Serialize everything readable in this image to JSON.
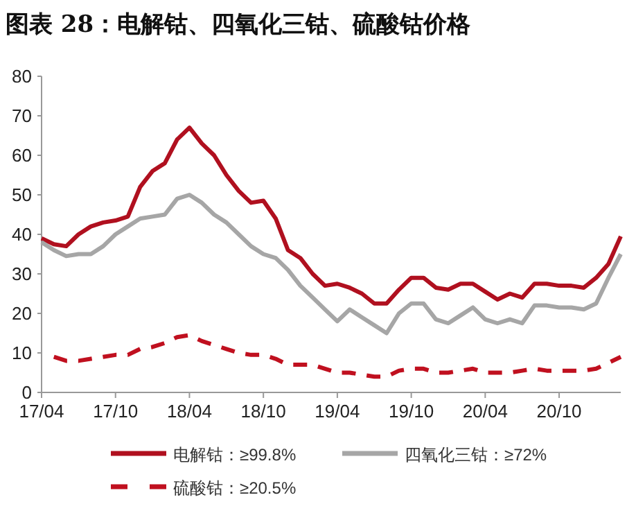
{
  "chart_data": {
    "type": "line",
    "title": "图表 28：电解钴、四氧化三钴、硫酸钴价格",
    "categories": [
      "17/04",
      null,
      null,
      null,
      null,
      null,
      "17/10",
      null,
      null,
      null,
      null,
      null,
      "18/04",
      null,
      null,
      null,
      null,
      null,
      "18/10",
      null,
      null,
      null,
      null,
      null,
      "19/04",
      null,
      null,
      null,
      null,
      null,
      "19/10",
      null,
      null,
      null,
      null,
      null,
      "20/04",
      null,
      null,
      null,
      null,
      null,
      "20/10",
      null,
      null,
      null,
      null,
      null
    ],
    "series": [
      {
        "name": "电解钴：≥99.8%",
        "color": "#b0101f",
        "line_style": "solid",
        "values": [
          39,
          37.5,
          37,
          40,
          42,
          43,
          43.5,
          44.5,
          52,
          56,
          58,
          64,
          67,
          63,
          60,
          55,
          51,
          48,
          48.5,
          44,
          36,
          34,
          30,
          27,
          27.5,
          26.5,
          25,
          22.5,
          22.5,
          26,
          29,
          29,
          26.5,
          26,
          27.5,
          27.5,
          25.5,
          23.5,
          25,
          24,
          27.5,
          27.5,
          27,
          27,
          26.5,
          29,
          32.5,
          39.5
        ]
      },
      {
        "name": "四氧化三钴：≥72%",
        "color": "#a6a6a6",
        "line_style": "solid",
        "values": [
          38,
          36,
          34.5,
          35,
          35,
          37,
          40,
          42,
          44,
          44.5,
          45,
          49,
          50,
          48,
          45,
          43,
          40,
          37,
          35,
          34,
          31,
          27,
          24,
          21,
          18,
          21,
          19,
          17,
          15,
          20,
          22.5,
          22.5,
          18.5,
          17.5,
          19.5,
          21.5,
          18.5,
          17.5,
          18.5,
          17.5,
          22,
          22,
          21.5,
          21.5,
          21,
          22.5,
          29,
          35
        ]
      },
      {
        "name": "硫酸钴：≥20.5%",
        "color": "#c0101f",
        "line_style": "dashed",
        "values": [
          null,
          9,
          8,
          8,
          8.5,
          9,
          9.5,
          9.5,
          11,
          11.5,
          12.5,
          14,
          14.5,
          13,
          12,
          11,
          10,
          9.5,
          9.5,
          8.5,
          7,
          7,
          7,
          6,
          5,
          5,
          4.5,
          4,
          4,
          5.5,
          6,
          6,
          5,
          5,
          5.5,
          6,
          5,
          5,
          5,
          5.5,
          6,
          5.5,
          5.5,
          5.5,
          5.5,
          6,
          7.5,
          9
        ]
      }
    ],
    "ylim": [
      0,
      80
    ],
    "yticks": [
      0,
      10,
      20,
      30,
      40,
      50,
      60,
      70,
      80
    ],
    "grid": false,
    "legend": "bottom",
    "marker": "none"
  }
}
